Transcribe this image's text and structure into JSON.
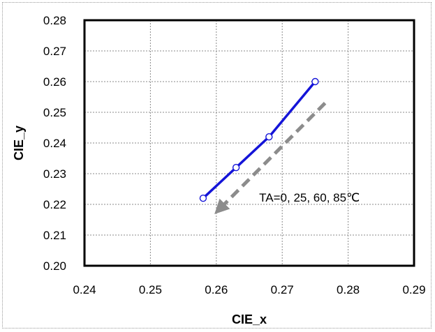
{
  "chart_data": {
    "type": "line",
    "title": "",
    "xlabel": "CIE_x",
    "ylabel": "CIE_y",
    "xlim": [
      0.24,
      0.29
    ],
    "ylim": [
      0.2,
      0.28
    ],
    "x_ticks": [
      "0.24",
      "0.25",
      "0.26",
      "0.27",
      "0.28",
      "0.29"
    ],
    "y_ticks": [
      "0.20",
      "0.21",
      "0.22",
      "0.23",
      "0.24",
      "0.25",
      "0.26",
      "0.27",
      "0.28"
    ],
    "grid": true,
    "legend": "none",
    "series": [
      {
        "x": [
          0.258,
          0.263,
          0.268,
          0.275
        ],
        "y": [
          0.222,
          0.232,
          0.242,
          0.26
        ],
        "color": "#1414d8",
        "marker": "open-circle"
      }
    ],
    "annotations": [
      {
        "text": "TA=0, 25, 60, 85℃",
        "x": 0.2665,
        "y": 0.2223,
        "arrow": {
          "from": [
            0.2765,
            0.253
          ],
          "to": [
            0.2605,
            0.2185
          ],
          "style": "dashed",
          "color": "#8c8c8c"
        }
      }
    ]
  }
}
